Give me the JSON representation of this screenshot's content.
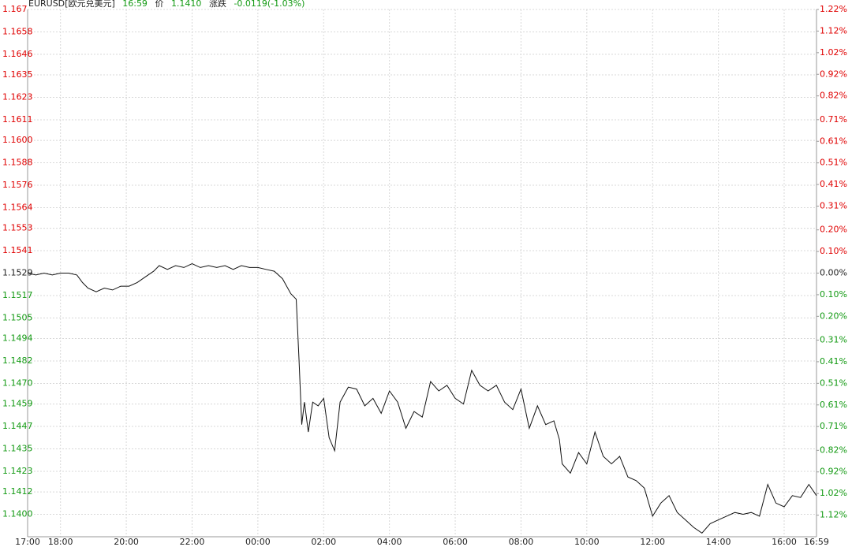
{
  "chart_data": {
    "type": "line",
    "header": {
      "symbol": "EURUSD[欧元兑美元]",
      "time": "16:59",
      "price_label": "价",
      "price": "1.1410",
      "change_label": "涨跌",
      "change": "-0.0119(-1.03%)"
    },
    "grid": true,
    "up_color": "#e00000",
    "down_color": "#139a13",
    "flat_color": "#222222",
    "xlim": [
      0,
      1439
    ],
    "xticks": [
      {
        "value": 0,
        "label": "17:00"
      },
      {
        "value": 60,
        "label": "18:00"
      },
      {
        "value": 180,
        "label": "20:00"
      },
      {
        "value": 300,
        "label": "22:00"
      },
      {
        "value": 420,
        "label": "00:00"
      },
      {
        "value": 540,
        "label": "02:00"
      },
      {
        "value": 660,
        "label": "04:00"
      },
      {
        "value": 780,
        "label": "06:00"
      },
      {
        "value": 900,
        "label": "08:00"
      },
      {
        "value": 1020,
        "label": "10:00"
      },
      {
        "value": 1140,
        "label": "12:00"
      },
      {
        "value": 1260,
        "label": "14:00"
      },
      {
        "value": 1380,
        "label": "16:00"
      },
      {
        "value": 1439,
        "label": "16:59"
      }
    ],
    "ylim": [
      1.1388,
      1.167
    ],
    "yticks": [
      1.167,
      1.1658,
      1.1646,
      1.1635,
      1.1623,
      1.1611,
      {
        "value": 1.16,
        "label": "1.1600"
      },
      1.1588,
      1.1576,
      1.1564,
      1.1553,
      1.1541,
      1.1529,
      1.1517,
      1.1505,
      1.1494,
      1.1482,
      {
        "value": 1.147,
        "label": "1.1470"
      },
      1.1459,
      1.1447,
      1.1435,
      1.1423,
      1.1412,
      {
        "value": 1.14,
        "label": "1.1400"
      }
    ],
    "y2lim": [
      -1.22,
      1.22
    ],
    "y2ticks": [
      {
        "value": 1.22,
        "label": "1.22%"
      },
      {
        "value": 1.12,
        "label": "1.12%"
      },
      {
        "value": 1.02,
        "label": "1.02%"
      },
      {
        "value": 0.92,
        "label": "0.92%"
      },
      {
        "value": 0.82,
        "label": "0.82%"
      },
      {
        "value": 0.71,
        "label": "0.71%"
      },
      {
        "value": 0.61,
        "label": "0.61%"
      },
      {
        "value": 0.51,
        "label": "0.51%"
      },
      {
        "value": 0.41,
        "label": "0.41%"
      },
      {
        "value": 0.31,
        "label": "0.31%"
      },
      {
        "value": 0.2,
        "label": "0.20%"
      },
      {
        "value": 0.1,
        "label": "0.10%"
      },
      {
        "value": 0,
        "label": "0.00%"
      },
      {
        "value": -0.1,
        "label": "0.10%"
      },
      {
        "value": -0.2,
        "label": "0.20%"
      },
      {
        "value": -0.31,
        "label": "0.31%"
      },
      {
        "value": -0.41,
        "label": "0.41%"
      },
      {
        "value": -0.51,
        "label": "0.51%"
      },
      {
        "value": -0.61,
        "label": "0.61%"
      },
      {
        "value": -0.71,
        "label": "0.71%"
      },
      {
        "value": -0.82,
        "label": "0.82%"
      },
      {
        "value": -0.92,
        "label": "0.92%"
      },
      {
        "value": -1.02,
        "label": "1.02%"
      },
      {
        "value": -1.12,
        "label": "1.12%"
      }
    ],
    "series": [
      {
        "color": "#111111",
        "x": [
          0,
          15,
          30,
          45,
          60,
          75,
          90,
          100,
          110,
          125,
          140,
          155,
          170,
          185,
          200,
          215,
          230,
          240,
          255,
          270,
          285,
          300,
          315,
          330,
          345,
          360,
          375,
          390,
          405,
          420,
          435,
          450,
          465,
          480,
          490,
          495,
          500,
          505,
          512,
          520,
          530,
          540,
          550,
          560,
          570,
          585,
          600,
          615,
          630,
          645,
          660,
          675,
          690,
          705,
          720,
          735,
          750,
          765,
          780,
          795,
          810,
          825,
          840,
          855,
          870,
          885,
          900,
          915,
          930,
          945,
          960,
          970,
          975,
          990,
          1005,
          1020,
          1035,
          1050,
          1065,
          1080,
          1095,
          1110,
          1125,
          1140,
          1155,
          1170,
          1185,
          1200,
          1215,
          1230,
          1245,
          1260,
          1275,
          1290,
          1305,
          1320,
          1335,
          1350,
          1365,
          1380,
          1395,
          1410,
          1425,
          1439
        ],
        "values": [
          1.1529,
          1.1528,
          1.1529,
          1.1528,
          1.1529,
          1.1529,
          1.1528,
          1.1524,
          1.1521,
          1.1519,
          1.1521,
          1.152,
          1.1522,
          1.1522,
          1.1524,
          1.1527,
          1.153,
          1.1533,
          1.1531,
          1.1533,
          1.1532,
          1.1534,
          1.1532,
          1.1533,
          1.1532,
          1.1533,
          1.1531,
          1.1533,
          1.1532,
          1.1532,
          1.1531,
          1.153,
          1.1526,
          1.1518,
          1.1515,
          1.1483,
          1.1448,
          1.146,
          1.1444,
          1.146,
          1.1458,
          1.1462,
          1.1441,
          1.1434,
          1.146,
          1.1468,
          1.1467,
          1.1458,
          1.1462,
          1.1454,
          1.1466,
          1.146,
          1.1446,
          1.1455,
          1.1452,
          1.1471,
          1.1466,
          1.1469,
          1.1462,
          1.1459,
          1.1477,
          1.1469,
          1.1466,
          1.1469,
          1.146,
          1.1456,
          1.1467,
          1.1446,
          1.1458,
          1.1448,
          1.145,
          1.144,
          1.1427,
          1.1422,
          1.1433,
          1.1427,
          1.1444,
          1.1431,
          1.1427,
          1.1431,
          1.142,
          1.1418,
          1.1414,
          1.1399,
          1.1406,
          1.141,
          1.1401,
          1.1397,
          1.1393,
          1.139,
          1.1395,
          1.1397,
          1.1399,
          1.1401,
          1.14,
          1.1401,
          1.1399,
          1.1416,
          1.1406,
          1.1404,
          1.141,
          1.1409,
          1.1416,
          1.141
        ]
      }
    ]
  }
}
